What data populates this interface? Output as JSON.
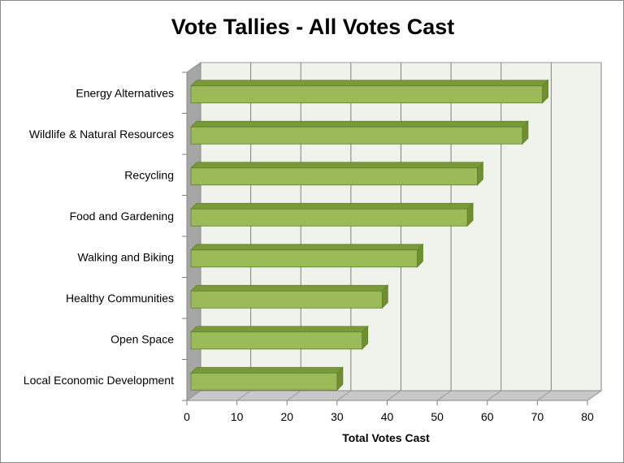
{
  "chart_data": {
    "type": "bar",
    "orientation": "horizontal",
    "three_d": true,
    "title": "Vote Tallies - All Votes Cast",
    "xlabel": "Total Votes Cast",
    "ylabel": "",
    "categories": [
      "Energy Alternatives",
      "Wildlife & Natural Resources",
      "Recycling",
      "Food and Gardening",
      "Walking and Biking",
      "Healthy Communities",
      "Open Space",
      "Local Economic Development"
    ],
    "values": [
      71,
      67,
      58,
      56,
      46,
      39,
      35,
      30
    ],
    "xlim": [
      0,
      80
    ],
    "xticks": [
      0,
      10,
      20,
      30,
      40,
      50,
      60,
      70,
      80
    ],
    "grid": true,
    "legend": "none",
    "colors": {
      "bar_front": "#9bbb59",
      "bar_top": "#7a9a3a",
      "bar_side": "#6f8f32",
      "bar_edge": "#5f7f2a",
      "back_wall": "#f0f3ec",
      "side_wall": "#a6a6a6",
      "floor": "#c8c8c8",
      "grid_line": "#808080"
    }
  }
}
